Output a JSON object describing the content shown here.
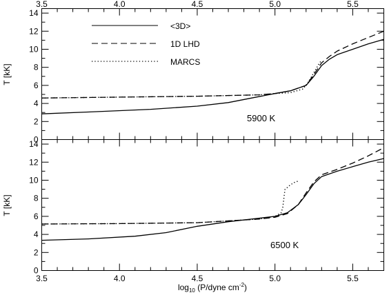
{
  "chart_data": {
    "type": "line",
    "xlabel": "log10 (P/dyne cm-2)",
    "xlabel_parts": {
      "prefix": "log",
      "sub": "10",
      "middle": " (P/dyne cm",
      "sup": "-2",
      "suffix": ")"
    },
    "xlim": [
      3.5,
      5.7
    ],
    "xticks": [
      3.5,
      4.0,
      4.5,
      5.0,
      5.5
    ],
    "xtick_labels": [
      "3.5",
      "4.0",
      "4.5",
      "5.0",
      "5.5"
    ],
    "legend": {
      "placement": "top-left",
      "entries": [
        {
          "label": "<3D>",
          "style": "solid"
        },
        {
          "label": "1D LHD",
          "style": "dashed"
        },
        {
          "label": "MARCS",
          "style": "dotted"
        }
      ]
    },
    "panels": [
      {
        "label": "5900 K",
        "ylabel": "T [kK]",
        "ylim": [
          0,
          14.5
        ],
        "yticks": [
          0,
          2,
          4,
          6,
          8,
          10,
          12,
          14
        ],
        "ytick_labels": [
          "0",
          "2",
          "4",
          "6",
          "8",
          "10",
          "12",
          "14"
        ],
        "series": [
          {
            "name": "<3D>",
            "style": "solid",
            "points": [
              [
                3.5,
                2.85
              ],
              [
                3.8,
                3.05
              ],
              [
                4.2,
                3.35
              ],
              [
                4.5,
                3.7
              ],
              [
                4.7,
                4.1
              ],
              [
                4.85,
                4.6
              ],
              [
                5.0,
                5.1
              ],
              [
                5.1,
                5.4
              ],
              [
                5.2,
                6.0
              ],
              [
                5.25,
                7.0
              ],
              [
                5.3,
                8.2
              ],
              [
                5.35,
                8.9
              ],
              [
                5.4,
                9.4
              ],
              [
                5.5,
                10.0
              ],
              [
                5.6,
                10.6
              ],
              [
                5.7,
                11.1
              ]
            ]
          },
          {
            "name": "1D LHD",
            "style": "dashed",
            "points": [
              [
                3.5,
                4.6
              ],
              [
                4.0,
                4.7
              ],
              [
                4.5,
                4.8
              ],
              [
                4.9,
                4.95
              ],
              [
                5.0,
                5.1
              ],
              [
                5.1,
                5.4
              ],
              [
                5.2,
                6.0
              ],
              [
                5.25,
                7.2
              ],
              [
                5.3,
                8.5
              ],
              [
                5.35,
                9.2
              ],
              [
                5.4,
                9.8
              ],
              [
                5.5,
                10.6
              ],
              [
                5.6,
                11.3
              ],
              [
                5.7,
                12.0
              ]
            ]
          },
          {
            "name": "MARCS",
            "style": "dotted",
            "points": [
              [
                3.5,
                4.6
              ],
              [
                4.0,
                4.7
              ],
              [
                4.5,
                4.8
              ],
              [
                4.9,
                4.95
              ],
              [
                5.0,
                5.1
              ],
              [
                5.1,
                5.2
              ],
              [
                5.18,
                5.6
              ],
              [
                5.22,
                6.5
              ],
              [
                5.25,
                7.4
              ],
              [
                5.28,
                8.3
              ],
              [
                5.3,
                8.8
              ]
            ]
          }
        ]
      },
      {
        "label": "6500 K",
        "ylabel": "T [kK]",
        "ylim": [
          0,
          14.5
        ],
        "yticks": [
          0,
          2,
          4,
          6,
          8,
          10,
          12,
          14
        ],
        "ytick_labels": [
          "0",
          "2",
          "4",
          "6",
          "8",
          "10",
          "12",
          "14"
        ],
        "series": [
          {
            "name": "<3D>",
            "style": "solid",
            "points": [
              [
                3.5,
                3.35
              ],
              [
                3.8,
                3.5
              ],
              [
                4.1,
                3.8
              ],
              [
                4.3,
                4.2
              ],
              [
                4.5,
                4.9
              ],
              [
                4.7,
                5.4
              ],
              [
                4.9,
                5.8
              ],
              [
                5.0,
                6.0
              ],
              [
                5.08,
                6.4
              ],
              [
                5.15,
                7.3
              ],
              [
                5.2,
                8.4
              ],
              [
                5.25,
                9.6
              ],
              [
                5.3,
                10.4
              ],
              [
                5.4,
                11.0
              ],
              [
                5.5,
                11.5
              ],
              [
                5.6,
                12.0
              ],
              [
                5.7,
                12.4
              ]
            ]
          },
          {
            "name": "1D LHD",
            "style": "dashed",
            "points": [
              [
                3.5,
                5.15
              ],
              [
                4.0,
                5.2
              ],
              [
                4.5,
                5.3
              ],
              [
                4.9,
                5.7
              ],
              [
                5.0,
                5.9
              ],
              [
                5.08,
                6.3
              ],
              [
                5.15,
                7.3
              ],
              [
                5.2,
                8.6
              ],
              [
                5.25,
                9.8
              ],
              [
                5.3,
                10.6
              ],
              [
                5.4,
                11.2
              ],
              [
                5.5,
                11.9
              ],
              [
                5.6,
                12.7
              ],
              [
                5.7,
                13.6
              ]
            ]
          },
          {
            "name": "MARCS",
            "style": "dotted",
            "points": [
              [
                3.5,
                5.15
              ],
              [
                4.0,
                5.2
              ],
              [
                4.5,
                5.3
              ],
              [
                4.9,
                5.7
              ],
              [
                5.0,
                6.0
              ],
              [
                5.04,
                6.4
              ],
              [
                5.05,
                7.0
              ],
              [
                5.055,
                7.7
              ],
              [
                5.06,
                8.4
              ],
              [
                5.065,
                9.0
              ],
              [
                5.08,
                9.2
              ],
              [
                5.1,
                9.5
              ],
              [
                5.13,
                9.8
              ],
              [
                5.15,
                9.9
              ]
            ]
          }
        ]
      }
    ]
  }
}
